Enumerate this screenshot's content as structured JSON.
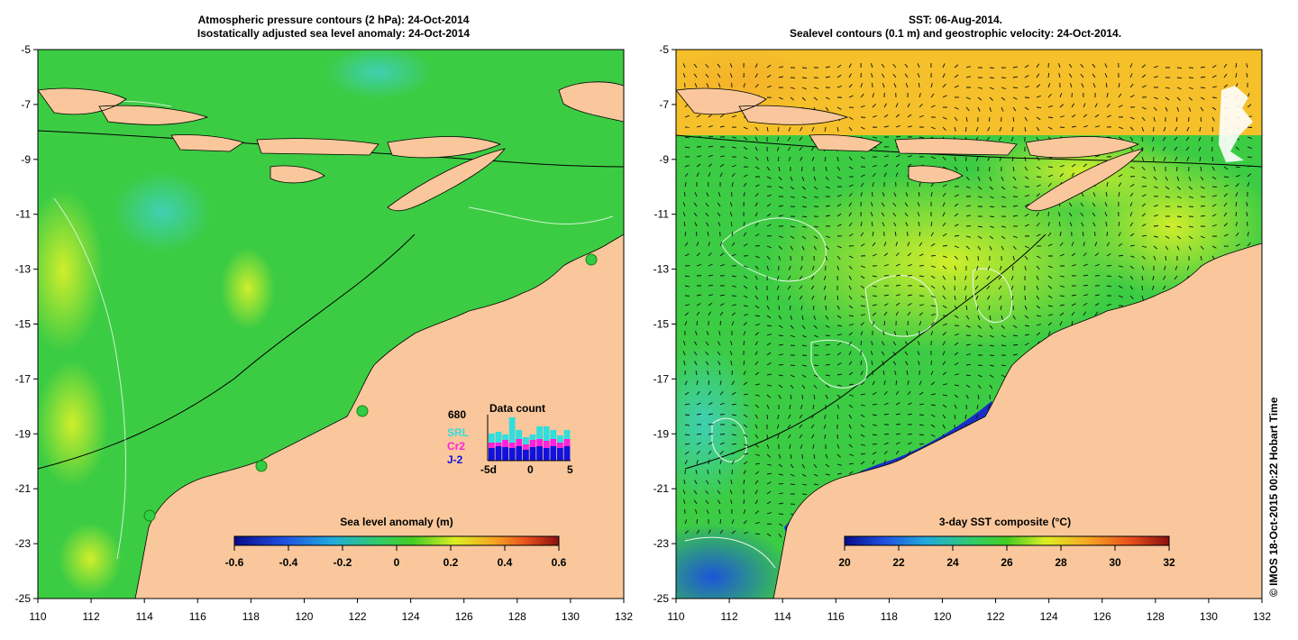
{
  "left_panel": {
    "title_line1": "Atmospheric pressure contours (2 hPa): 24-Oct-2014",
    "title_line2": "Isostatically adjusted sea level anomaly: 24-Oct-2014",
    "colorbar": {
      "title": "Sea level anomaly (m)",
      "ticks": [
        "-0.6",
        "-0.4",
        "-0.2",
        "0",
        "0.2",
        "0.4",
        "0.6"
      ]
    },
    "data_count": {
      "title": "Data count",
      "total": "680",
      "legend": [
        "SRL",
        "Cr2",
        "J-2"
      ],
      "axis": [
        "-5d",
        "0",
        "5"
      ],
      "colors": {
        "srl": "#33dddd",
        "cr2": "#ff22dd",
        "j2": "#1111dd"
      }
    }
  },
  "right_panel": {
    "title_line1": "SST: 06-Aug-2014.",
    "title_line2": "Sealevel contours (0.1 m) and geostrophic velocity: 24-Oct-2014.",
    "colorbar": {
      "title": "3-day SST composite (°C)",
      "ticks": [
        "20",
        "22",
        "24",
        "26",
        "28",
        "30",
        "32"
      ]
    }
  },
  "axes": {
    "x_ticks": [
      "110",
      "112",
      "114",
      "116",
      "118",
      "120",
      "122",
      "124",
      "126",
      "128",
      "130",
      "132"
    ],
    "y_ticks": [
      "-5",
      "-7",
      "-9",
      "-11",
      "-13",
      "-15",
      "-17",
      "-19",
      "-21",
      "-23",
      "-25"
    ],
    "lon_range": [
      110,
      132
    ],
    "lat_range": [
      -25,
      -5
    ]
  },
  "colors": {
    "land": "#f9c79b",
    "ocean_green": "#33cc44",
    "ocean_yellow": "#d6f02a",
    "ocean_cyan": "#3fd6b4",
    "sst_blue": "#1a3fd8"
  },
  "copyright": "© IMOS 18-Oct-2015 00:22 Hobart Time"
}
